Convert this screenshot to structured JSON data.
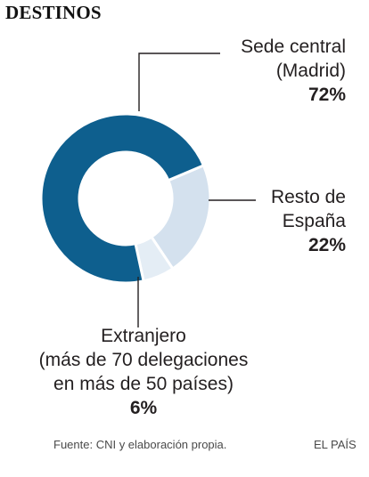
{
  "chart_data": {
    "type": "pie",
    "title": "DESTINOS",
    "slices": [
      {
        "label": "Sede central (Madrid)",
        "label_lines": [
          "Sede central",
          "(Madrid)"
        ],
        "value": 72,
        "value_label": "72%",
        "color": "#0e5f8e"
      },
      {
        "label": "Resto de España",
        "label_lines": [
          "Resto de",
          "España"
        ],
        "value": 22,
        "value_label": "22%",
        "color": "#d4e1ee"
      },
      {
        "label": "Extranjero (más de 70 delegaciones en más de 50 países)",
        "label_lines": [
          "Extranjero",
          "(más de 70 delegaciones",
          "en más de 50 países)"
        ],
        "value": 6,
        "value_label": "6%",
        "color": "#e4edf5"
      }
    ]
  },
  "footer": {
    "source": "Fuente: CNI y  elaboración propia.",
    "credit": "EL PAÍS"
  }
}
